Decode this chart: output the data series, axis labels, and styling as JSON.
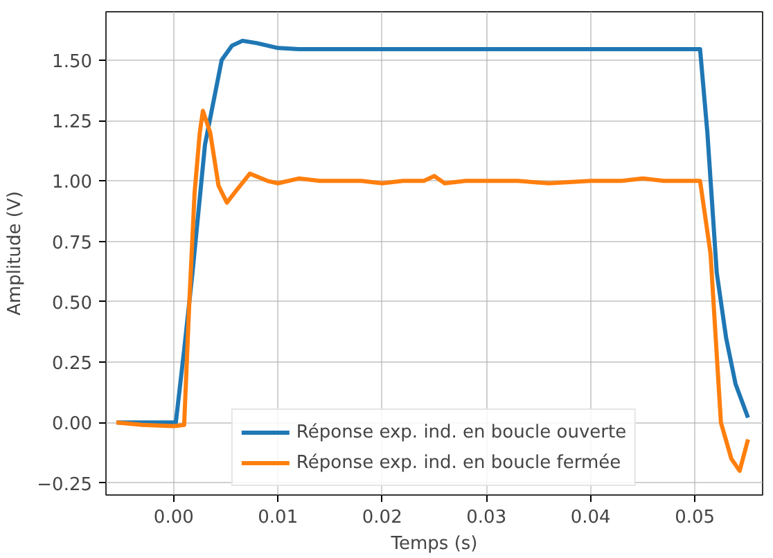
{
  "chart_data": {
    "type": "line",
    "xlabel": "Temps (s)",
    "ylabel": "Amplitude (V)",
    "xlim": [
      -0.0065,
      0.0565
    ],
    "ylim": [
      -0.3,
      1.7
    ],
    "xticks": [
      {
        "value": 0,
        "label": "0.00"
      },
      {
        "value": 0.01,
        "label": "0.01"
      },
      {
        "value": 0.02,
        "label": "0.02"
      },
      {
        "value": 0.03,
        "label": "0.03"
      },
      {
        "value": 0.04,
        "label": "0.04"
      },
      {
        "value": 0.05,
        "label": "0.05"
      }
    ],
    "yticks": [
      {
        "value": -0.25,
        "label": "−0.25"
      },
      {
        "value": 0,
        "label": "0.00"
      },
      {
        "value": 0.25,
        "label": "0.25"
      },
      {
        "value": 0.5,
        "label": "0.50"
      },
      {
        "value": 0.75,
        "label": "0.75"
      },
      {
        "value": 1.0,
        "label": "1.00"
      },
      {
        "value": 1.25,
        "label": "1.25"
      },
      {
        "value": 1.5,
        "label": "1.50"
      }
    ],
    "grid": true,
    "legend": "bottom",
    "line_style": "solid",
    "marker": "none",
    "series": [
      {
        "name": "Réponse exp. ind. en boucle ouverte",
        "color": "#1f77b4",
        "x": [
          -0.0055,
          0.0002,
          0.001,
          0.0018,
          0.003,
          0.0046,
          0.0056,
          0.0066,
          0.008,
          0.01,
          0.012,
          0.02,
          0.03,
          0.04,
          0.0505,
          0.0512,
          0.0521,
          0.053,
          0.0539,
          0.0551
        ],
        "values": [
          0.0,
          0.0,
          0.3,
          0.62,
          1.15,
          1.5,
          1.56,
          1.58,
          1.57,
          1.55,
          1.545,
          1.545,
          1.545,
          1.545,
          1.545,
          1.2,
          0.62,
          0.35,
          0.16,
          0.02
        ]
      },
      {
        "name": "Réponse exp. ind. en boucle fermée",
        "color": "#ff7f0e",
        "x": [
          -0.0055,
          -0.003,
          0.0,
          0.001,
          0.0015,
          0.002,
          0.0025,
          0.0028,
          0.0035,
          0.0043,
          0.0051,
          0.006,
          0.0073,
          0.009,
          0.01,
          0.012,
          0.014,
          0.016,
          0.018,
          0.02,
          0.022,
          0.024,
          0.025,
          0.026,
          0.028,
          0.03,
          0.033,
          0.036,
          0.04,
          0.043,
          0.045,
          0.047,
          0.049,
          0.0505,
          0.0515,
          0.0525,
          0.0535,
          0.0543,
          0.0551
        ],
        "values": [
          0.0,
          -0.01,
          -0.015,
          -0.01,
          0.5,
          0.95,
          1.2,
          1.29,
          1.2,
          0.98,
          0.91,
          0.96,
          1.03,
          1.0,
          0.99,
          1.01,
          1.0,
          1.0,
          1.0,
          0.99,
          1.0,
          1.0,
          1.02,
          0.99,
          1.0,
          1.0,
          1.0,
          0.99,
          1.0,
          1.0,
          1.01,
          1.0,
          1.0,
          1.0,
          0.7,
          0.0,
          -0.15,
          -0.2,
          -0.07
        ]
      }
    ]
  }
}
